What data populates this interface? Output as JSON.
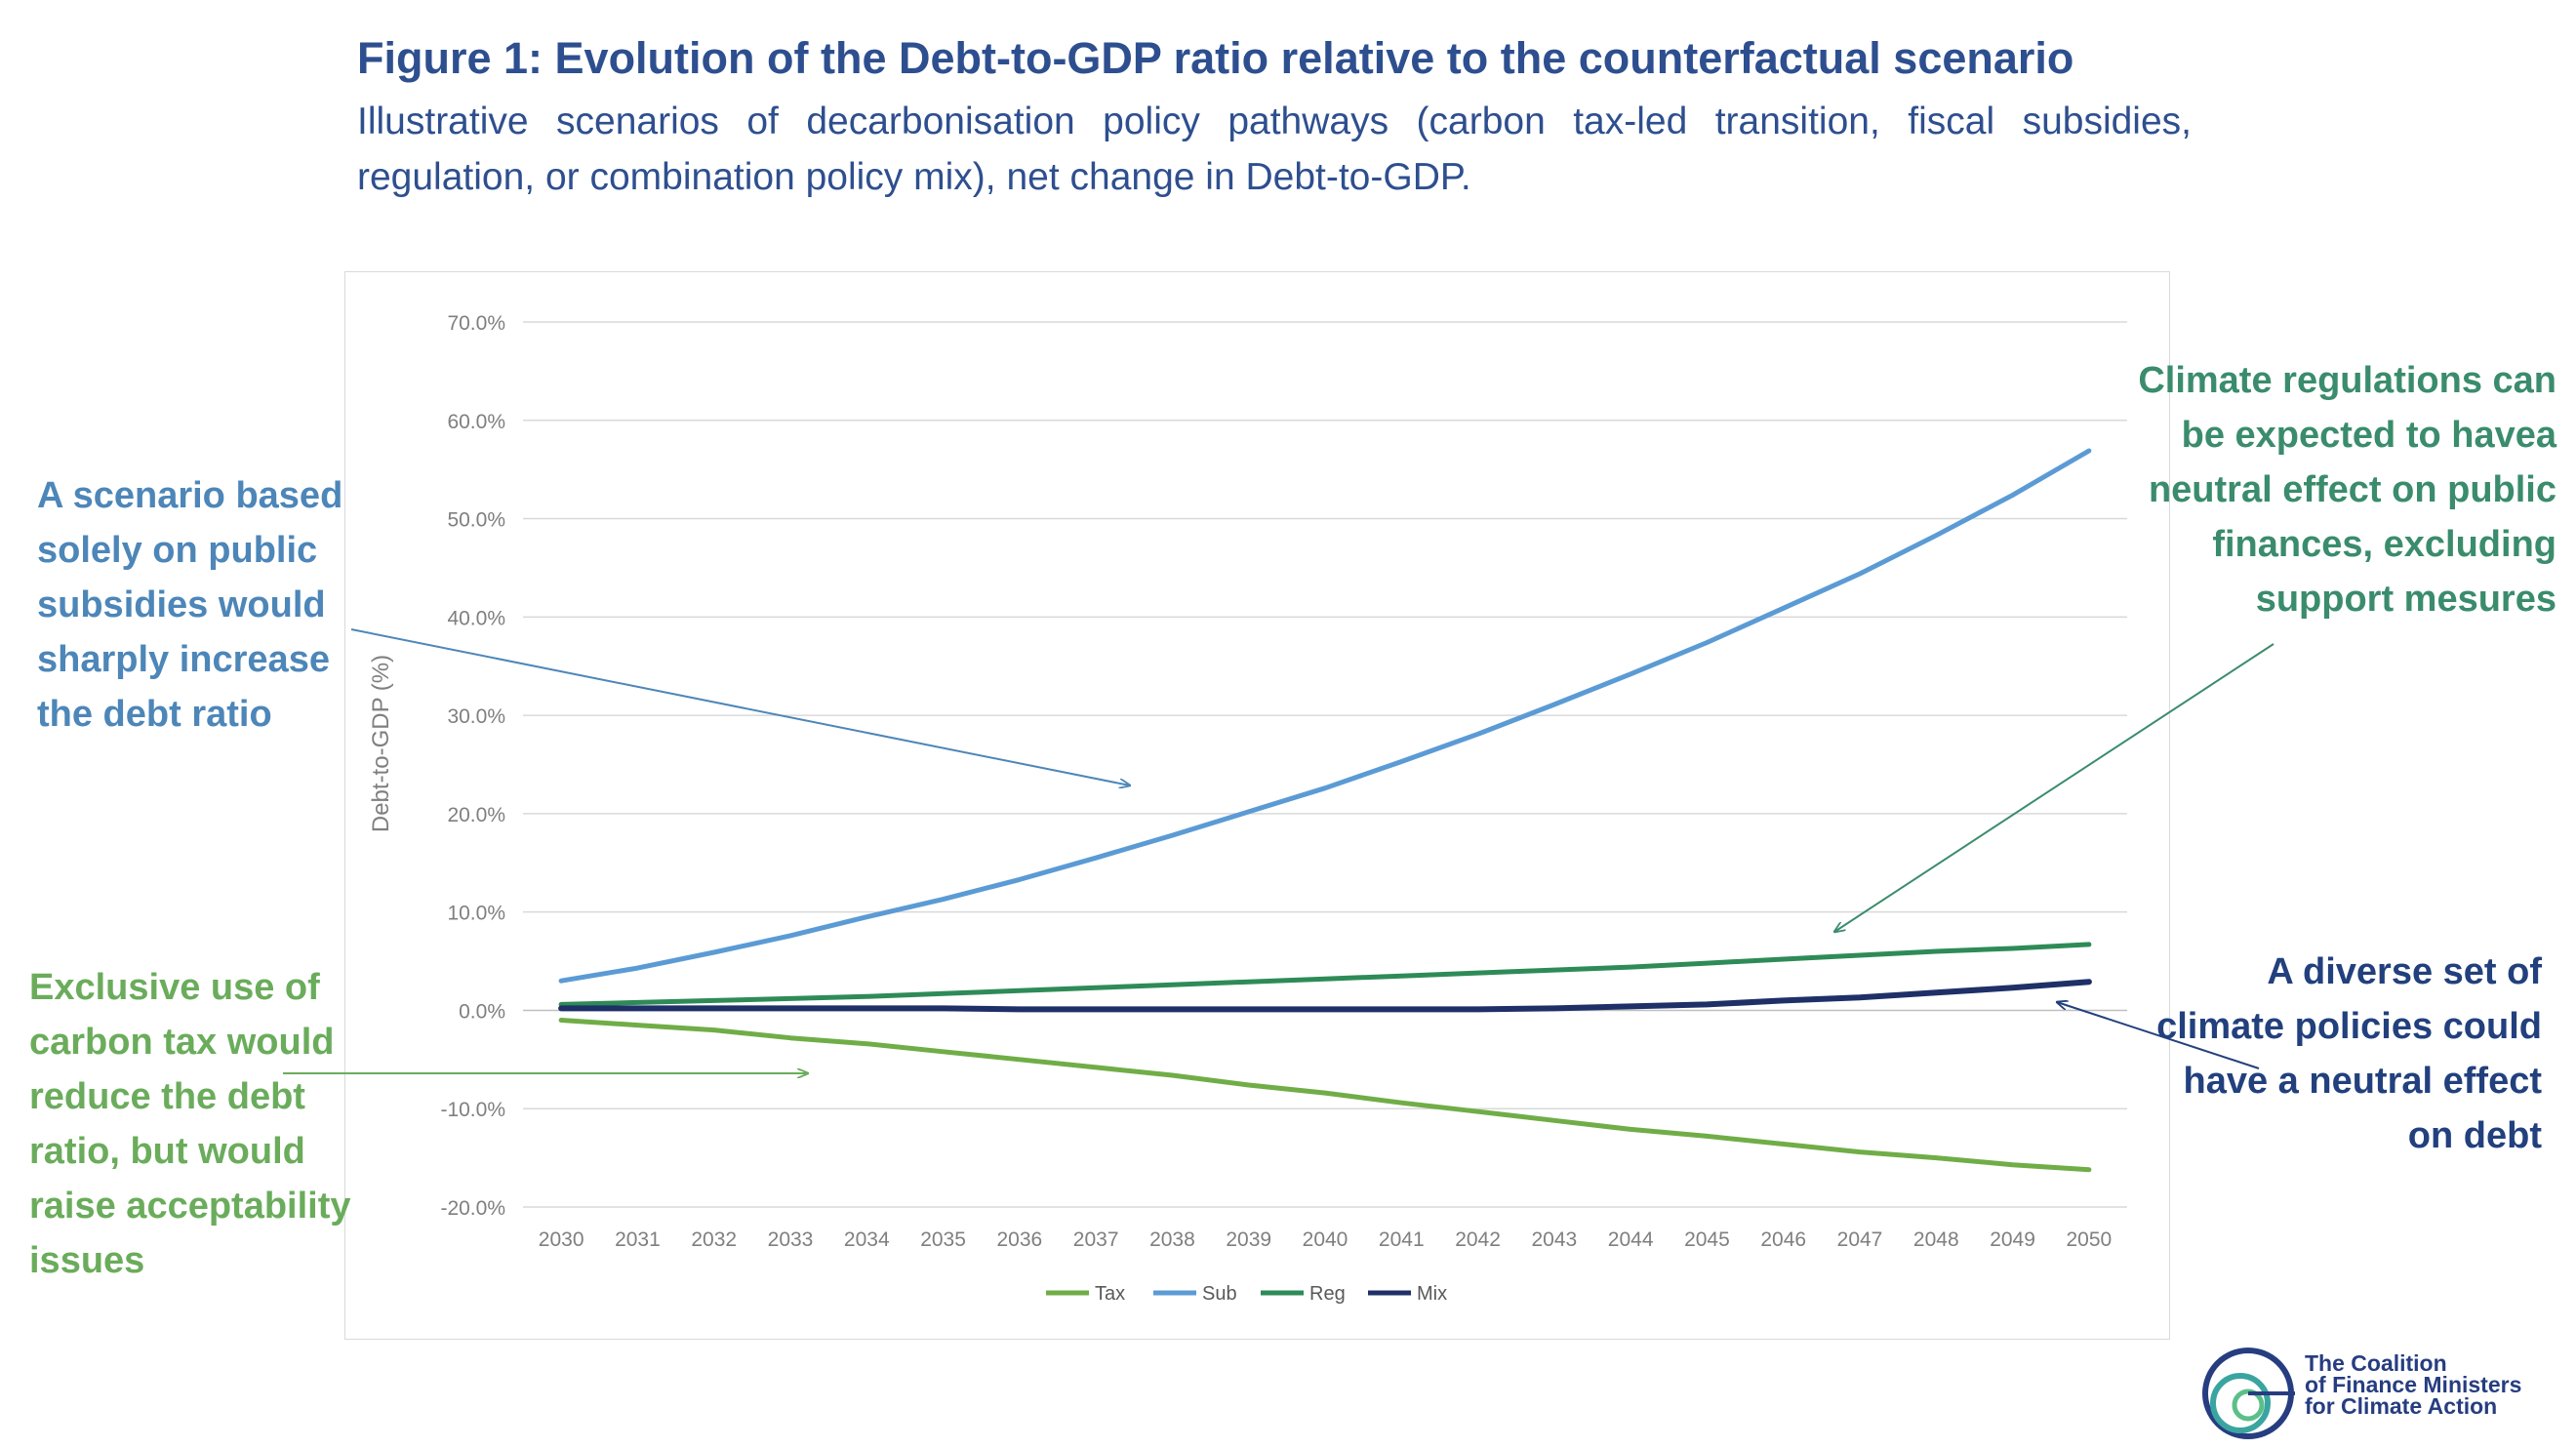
{
  "header": {
    "title": "Figure 1: Evolution of the Debt-to-GDP ratio relative to the counterfactual scenario",
    "subtitle": "Illustrative scenarios of decarbonisation policy pathways (carbon tax-led transition, fiscal subsidies, regulation, or combination policy mix), net change in Debt-to-GDP."
  },
  "annotations": {
    "subsidies": "A scenario based solely on public subsidies would sharply increase the debt ratio",
    "tax": "Exclusive use of carbon tax would reduce the debt ratio, but would raise acceptability issues",
    "regulation": "Climate regulations can be expected to havea neutral effect on public finances, excluding support mesures",
    "mix": "A diverse set of climate policies could have a neutral effect on debt"
  },
  "logo": {
    "line1": "The Coalition",
    "line2": "of Finance Ministers",
    "line3": "for Climate Action"
  },
  "colors": {
    "title": "#2e4f8f",
    "tax": "#70ad47",
    "sub": "#5b9bd5",
    "reg": "#2e8b57",
    "mix": "#1f3068",
    "grid": "#d9d9d9",
    "axis_text": "#7f7f7f"
  },
  "chart_data": {
    "type": "line",
    "ylabel": "Debt-to-GDP (%)",
    "xlabel": "",
    "ylim": [
      -20,
      70
    ],
    "yticks": [
      -20,
      -10,
      0,
      10,
      20,
      30,
      40,
      50,
      60,
      70
    ],
    "ytick_labels": [
      "-20.0%",
      "-10.0%",
      "0.0%",
      "10.0%",
      "20.0%",
      "30.0%",
      "40.0%",
      "50.0%",
      "60.0%",
      "70.0%"
    ],
    "categories": [
      "2030",
      "2031",
      "2032",
      "2033",
      "2034",
      "2035",
      "2036",
      "2037",
      "2038",
      "2039",
      "2040",
      "2041",
      "2042",
      "2043",
      "2044",
      "2045",
      "2046",
      "2047",
      "2048",
      "2049",
      "2050"
    ],
    "legend_position": "bottom",
    "series": [
      {
        "name": "Tax",
        "color": "#70ad47",
        "values": [
          -1.0,
          -1.5,
          -2.0,
          -2.8,
          -3.4,
          -4.2,
          -5.0,
          -5.8,
          -6.6,
          -7.6,
          -8.4,
          -9.4,
          -10.3,
          -11.2,
          -12.1,
          -12.8,
          -13.6,
          -14.4,
          -15.0,
          -15.7,
          -16.2
        ]
      },
      {
        "name": "Sub",
        "color": "#5b9bd5",
        "values": [
          3.0,
          4.3,
          5.9,
          7.6,
          9.5,
          11.3,
          13.3,
          15.5,
          17.8,
          20.2,
          22.6,
          25.3,
          28.1,
          31.1,
          34.2,
          37.4,
          40.9,
          44.4,
          48.3,
          52.4,
          56.9
        ]
      },
      {
        "name": "Reg",
        "color": "#2e8b57",
        "values": [
          0.6,
          0.8,
          1.0,
          1.2,
          1.4,
          1.7,
          2.0,
          2.3,
          2.6,
          2.9,
          3.2,
          3.5,
          3.8,
          4.1,
          4.4,
          4.8,
          5.2,
          5.6,
          6.0,
          6.3,
          6.7
        ]
      },
      {
        "name": "Mix",
        "color": "#1f3068",
        "values": [
          0.2,
          0.2,
          0.2,
          0.2,
          0.2,
          0.2,
          0.1,
          0.1,
          0.1,
          0.1,
          0.1,
          0.1,
          0.1,
          0.2,
          0.4,
          0.6,
          1.0,
          1.3,
          1.8,
          2.3,
          2.9
        ]
      }
    ]
  }
}
